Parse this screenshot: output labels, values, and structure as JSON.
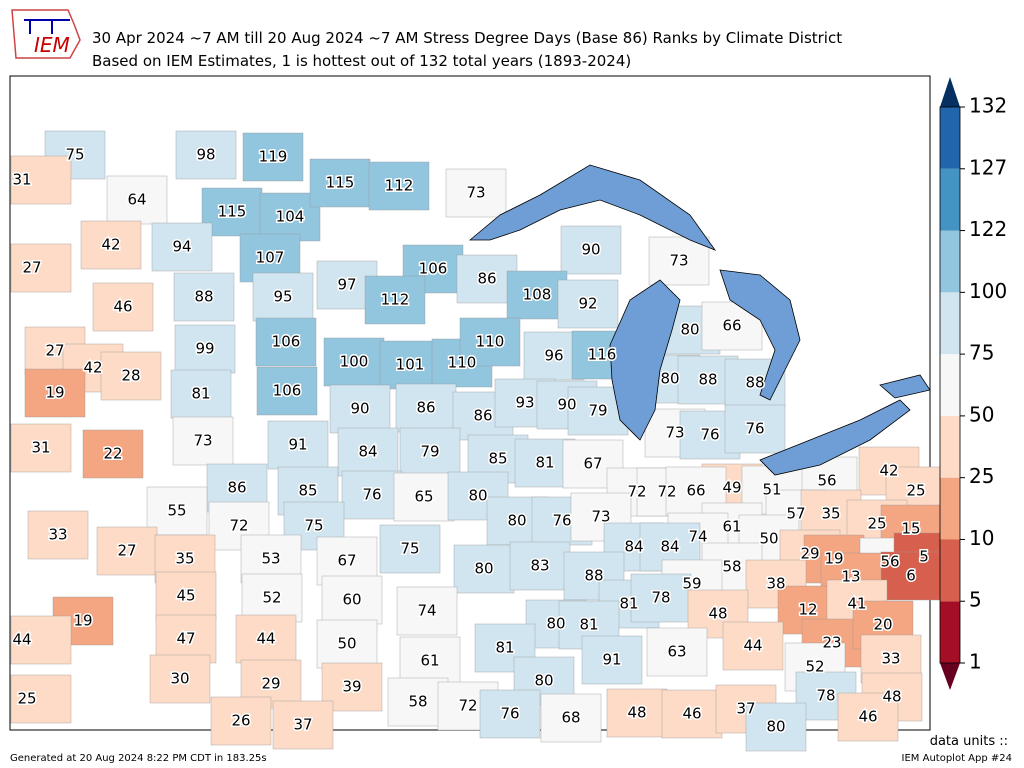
{
  "header": {
    "logo": "IEM",
    "title": "30 Apr 2024 ~7 AM till 20 Aug 2024 ~7 AM Stress Degree Days (Base 86) Ranks by Climate District",
    "subtitle": "Based on IEM Estimates, 1 is hottest out of 132 total years (1893-2024)"
  },
  "colorbar": {
    "levels": [
      1,
      5,
      10,
      25,
      50,
      75,
      100,
      122,
      127,
      132
    ],
    "colors": [
      "#a50f26",
      "#d6604d",
      "#f4a582",
      "#fddbc7",
      "#f7f7f7",
      "#d1e5f0",
      "#92c5de",
      "#4393c3",
      "#2166ac"
    ],
    "under_color": "#67001f",
    "over_color": "#053061"
  },
  "districts": [
    75,
    98,
    119,
    31,
    64,
    115,
    104,
    115,
    112,
    73,
    42,
    94,
    107,
    27,
    90,
    73,
    106,
    86,
    108,
    46,
    88,
    95,
    97,
    112,
    92,
    80,
    66,
    27,
    42,
    28,
    99,
    106,
    19,
    81,
    106,
    100,
    101,
    110,
    96,
    116,
    80,
    88,
    88,
    90,
    86,
    86,
    93,
    90,
    79,
    73,
    76,
    76,
    31,
    22,
    73,
    91,
    84,
    79,
    85,
    81,
    67,
    42,
    25,
    56,
    49,
    51,
    86,
    85,
    76,
    65,
    80,
    72,
    72,
    66,
    55,
    72,
    75,
    80,
    76,
    73,
    61,
    57,
    35,
    25,
    15,
    33,
    27,
    74,
    50,
    75,
    84,
    84,
    35,
    53,
    67,
    29,
    19,
    56,
    5,
    6,
    80,
    83,
    88,
    58,
    13,
    45,
    52,
    60,
    59,
    38,
    19,
    74,
    81,
    78,
    48,
    12,
    41,
    44,
    47,
    44,
    50,
    80,
    81,
    23,
    20,
    91,
    63,
    44,
    61,
    81,
    52,
    33,
    30,
    29,
    39,
    25,
    80,
    58,
    72,
    76,
    68,
    48,
    46,
    37,
    78,
    48,
    46,
    26,
    37,
    80,
    110
  ],
  "footer": {
    "units": "data units ::",
    "generated": "Generated at 20 Aug 2024 8:22 PM CDT in 183.25s",
    "app": "IEM Autoplot App #24"
  }
}
